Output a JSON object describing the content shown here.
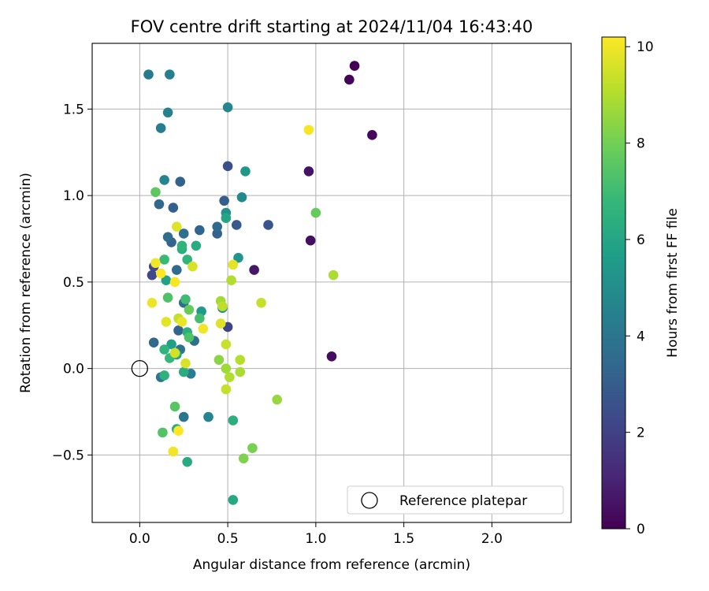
{
  "chart_data": {
    "type": "scatter",
    "title": "FOV centre drift starting at 2024/11/04 16:43:40",
    "xlabel": "Angular distance from reference (arcmin)",
    "ylabel": "Rotation from reference (arcmin)",
    "xlim": [
      -0.27,
      2.45
    ],
    "ylim": [
      -0.89,
      1.88
    ],
    "xticks": [
      0.0,
      0.5,
      1.0,
      1.5,
      2.0
    ],
    "xtick_labels": [
      "0.0",
      "0.5",
      "1.0",
      "1.5",
      "2.0"
    ],
    "yticks": [
      -0.5,
      0.0,
      0.5,
      1.0,
      1.5
    ],
    "ytick_labels": [
      "−0.5",
      "0.0",
      "0.5",
      "1.0",
      "1.5"
    ],
    "grid": true,
    "legend": {
      "placement": "lower-right",
      "entries": [
        {
          "label": "Reference platepar",
          "marker": "open-circle"
        }
      ]
    },
    "reference_point": {
      "x": 0.0,
      "y": 0.0
    },
    "colorbar": {
      "label": "Hours from first FF file",
      "min": 0,
      "max": 10.2,
      "ticks": [
        0,
        2,
        4,
        6,
        8,
        10
      ],
      "tick_labels": [
        "0",
        "2",
        "4",
        "6",
        "8",
        "10"
      ],
      "colormap": "viridis",
      "colormap_stops": [
        "#440154",
        "#482878",
        "#3e4989",
        "#31688e",
        "#26828e",
        "#1f9e89",
        "#35b779",
        "#6ece58",
        "#b5de2b",
        "#fde725"
      ]
    },
    "points": [
      {
        "x": 1.22,
        "y": 1.75,
        "h": 0.0
      },
      {
        "x": 1.19,
        "y": 1.67,
        "h": 0.1
      },
      {
        "x": 1.32,
        "y": 1.35,
        "h": 0.2
      },
      {
        "x": 0.96,
        "y": 1.14,
        "h": 0.5
      },
      {
        "x": 0.97,
        "y": 0.74,
        "h": 0.4
      },
      {
        "x": 0.65,
        "y": 0.57,
        "h": 0.6
      },
      {
        "x": 1.09,
        "y": 0.07,
        "h": 0.3
      },
      {
        "x": 0.5,
        "y": 1.17,
        "h": 2.5
      },
      {
        "x": 0.73,
        "y": 0.83,
        "h": 2.7
      },
      {
        "x": 0.55,
        "y": 0.83,
        "h": 2.9
      },
      {
        "x": 0.07,
        "y": 0.54,
        "h": 2.3
      },
      {
        "x": 0.08,
        "y": 0.59,
        "h": 2.2
      },
      {
        "x": 0.5,
        "y": 0.24,
        "h": 2.1
      },
      {
        "x": 0.48,
        "y": 0.97,
        "h": 3.0
      },
      {
        "x": 0.23,
        "y": 1.08,
        "h": 3.2
      },
      {
        "x": 0.19,
        "y": 0.93,
        "h": 3.1
      },
      {
        "x": 0.11,
        "y": 0.95,
        "h": 3.4
      },
      {
        "x": 0.44,
        "y": 0.78,
        "h": 3.2
      },
      {
        "x": 0.44,
        "y": 0.82,
        "h": 3.5
      },
      {
        "x": 0.34,
        "y": 0.8,
        "h": 3.3
      },
      {
        "x": 0.25,
        "y": 0.78,
        "h": 3.8
      },
      {
        "x": 0.18,
        "y": 0.73,
        "h": 3.3
      },
      {
        "x": 0.16,
        "y": 0.76,
        "h": 3.6
      },
      {
        "x": 0.21,
        "y": 0.57,
        "h": 3.5
      },
      {
        "x": 0.08,
        "y": 0.15,
        "h": 3.4
      },
      {
        "x": 0.22,
        "y": 0.22,
        "h": 3.3
      },
      {
        "x": 0.25,
        "y": 0.38,
        "h": 3.6
      },
      {
        "x": 0.31,
        "y": 0.16,
        "h": 3.7
      },
      {
        "x": 0.23,
        "y": 0.11,
        "h": 3.9
      },
      {
        "x": 0.12,
        "y": -0.05,
        "h": 4.0
      },
      {
        "x": 0.29,
        "y": -0.03,
        "h": 4.3
      },
      {
        "x": 0.25,
        "y": -0.28,
        "h": 4.0
      },
      {
        "x": 0.39,
        "y": -0.28,
        "h": 4.6
      },
      {
        "x": 0.05,
        "y": 1.7,
        "h": 4.2
      },
      {
        "x": 0.17,
        "y": 1.7,
        "h": 4.4
      },
      {
        "x": 0.16,
        "y": 1.48,
        "h": 4.5
      },
      {
        "x": 0.12,
        "y": 1.39,
        "h": 4.3
      },
      {
        "x": 0.5,
        "y": 1.51,
        "h": 4.7
      },
      {
        "x": 0.14,
        "y": 1.09,
        "h": 4.6
      },
      {
        "x": 0.58,
        "y": 0.99,
        "h": 4.8
      },
      {
        "x": 0.49,
        "y": 0.9,
        "h": 5.1
      },
      {
        "x": 0.6,
        "y": 1.14,
        "h": 5.4
      },
      {
        "x": 0.56,
        "y": 0.64,
        "h": 5.3
      },
      {
        "x": 0.49,
        "y": 0.87,
        "h": 6.0
      },
      {
        "x": 0.15,
        "y": 0.51,
        "h": 5.8
      },
      {
        "x": 0.47,
        "y": 0.35,
        "h": 5.2
      },
      {
        "x": 0.35,
        "y": 0.33,
        "h": 5.6
      },
      {
        "x": 0.18,
        "y": 0.14,
        "h": 5.7
      },
      {
        "x": 0.14,
        "y": 0.11,
        "h": 6.6
      },
      {
        "x": 0.27,
        "y": 0.21,
        "h": 6.4
      },
      {
        "x": 0.21,
        "y": 0.08,
        "h": 6.0
      },
      {
        "x": 0.17,
        "y": 0.06,
        "h": 6.8
      },
      {
        "x": 0.14,
        "y": -0.04,
        "h": 6.5
      },
      {
        "x": 0.25,
        "y": -0.02,
        "h": 6.3
      },
      {
        "x": 0.27,
        "y": -0.54,
        "h": 6.2
      },
      {
        "x": 0.53,
        "y": -0.3,
        "h": 6.4
      },
      {
        "x": 0.53,
        "y": -0.76,
        "h": 6.1
      },
      {
        "x": 0.21,
        "y": -0.35,
        "h": 6.3
      },
      {
        "x": 0.32,
        "y": 0.71,
        "h": 6.2
      },
      {
        "x": 0.24,
        "y": 0.69,
        "h": 6.4
      },
      {
        "x": 0.24,
        "y": 0.71,
        "h": 6.6
      },
      {
        "x": 0.27,
        "y": 0.63,
        "h": 6.6
      },
      {
        "x": 0.14,
        "y": 0.63,
        "h": 6.9
      },
      {
        "x": 0.26,
        "y": 0.4,
        "h": 7.0
      },
      {
        "x": 0.16,
        "y": 0.41,
        "h": 7.3
      },
      {
        "x": 0.28,
        "y": 0.18,
        "h": 7.3
      },
      {
        "x": 0.34,
        "y": 0.29,
        "h": 7.1
      },
      {
        "x": 0.28,
        "y": 0.34,
        "h": 7.8
      },
      {
        "x": 0.2,
        "y": -0.22,
        "h": 7.5
      },
      {
        "x": 0.13,
        "y": -0.37,
        "h": 7.4
      },
      {
        "x": 0.09,
        "y": 1.02,
        "h": 7.6
      },
      {
        "x": 1.0,
        "y": 0.9,
        "h": 7.8
      },
      {
        "x": 0.64,
        "y": -0.46,
        "h": 8.1
      },
      {
        "x": 0.59,
        "y": -0.52,
        "h": 8.2
      },
      {
        "x": 0.78,
        "y": -0.18,
        "h": 8.6
      },
      {
        "x": 0.45,
        "y": 0.05,
        "h": 8.4
      },
      {
        "x": 0.49,
        "y": 0.0,
        "h": 8.7
      },
      {
        "x": 0.57,
        "y": -0.02,
        "h": 8.9
      },
      {
        "x": 0.51,
        "y": -0.05,
        "h": 9.0
      },
      {
        "x": 0.49,
        "y": -0.12,
        "h": 9.3
      },
      {
        "x": 0.57,
        "y": 0.05,
        "h": 9.1
      },
      {
        "x": 0.49,
        "y": 0.14,
        "h": 9.4
      },
      {
        "x": 0.46,
        "y": 0.39,
        "h": 8.8
      },
      {
        "x": 0.47,
        "y": 0.36,
        "h": 9.2
      },
      {
        "x": 0.46,
        "y": 0.26,
        "h": 9.7
      },
      {
        "x": 0.52,
        "y": 0.51,
        "h": 9.0
      },
      {
        "x": 0.69,
        "y": 0.38,
        "h": 9.3
      },
      {
        "x": 1.1,
        "y": 0.54,
        "h": 8.9
      },
      {
        "x": 0.2,
        "y": 0.09,
        "h": 9.5
      },
      {
        "x": 0.26,
        "y": 0.03,
        "h": 9.6
      },
      {
        "x": 0.22,
        "y": 0.29,
        "h": 9.3
      },
      {
        "x": 0.24,
        "y": 0.27,
        "h": 9.9
      },
      {
        "x": 0.36,
        "y": 0.23,
        "h": 10.0
      },
      {
        "x": 0.15,
        "y": 0.27,
        "h": 9.8
      },
      {
        "x": 0.07,
        "y": 0.38,
        "h": 9.9
      },
      {
        "x": 0.2,
        "y": 0.5,
        "h": 10.1
      },
      {
        "x": 0.12,
        "y": 0.55,
        "h": 10.2
      },
      {
        "x": 0.09,
        "y": 0.61,
        "h": 10.0
      },
      {
        "x": 0.3,
        "y": 0.59,
        "h": 9.6
      },
      {
        "x": 0.53,
        "y": 0.6,
        "h": 9.8
      },
      {
        "x": 0.21,
        "y": 0.82,
        "h": 9.7
      },
      {
        "x": 0.96,
        "y": 1.38,
        "h": 10.1
      },
      {
        "x": 0.22,
        "y": -0.36,
        "h": 10.2
      },
      {
        "x": 0.19,
        "y": -0.48,
        "h": 10.0
      }
    ]
  }
}
